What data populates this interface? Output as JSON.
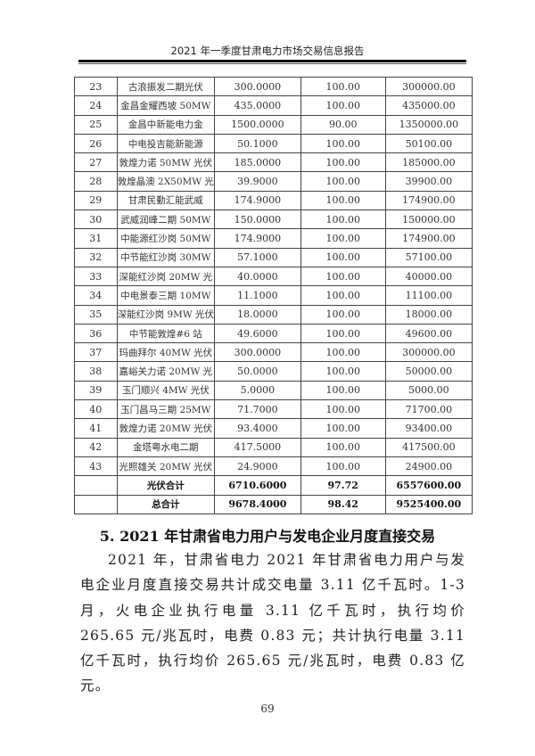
{
  "header": {
    "title": "2021 年一季度甘肃电力市场交易信息报告"
  },
  "table": {
    "rows": [
      [
        "23",
        "古浪振发二期光伏",
        "300.0000",
        "100.00",
        "300000.00"
      ],
      [
        "24",
        "金昌金耀西坡 50MW",
        "435.0000",
        "100.00",
        "435000.00"
      ],
      [
        "25",
        "金昌中新能电力金",
        "1500.0000",
        "90.00",
        "1350000.00"
      ],
      [
        "26",
        "中电投吉能新能源",
        "50.1000",
        "100.00",
        "50100.00"
      ],
      [
        "27",
        "敦煌力诺 50MW 光伏",
        "185.0000",
        "100.00",
        "185000.00"
      ],
      [
        "28",
        "敦煌晶澳 2X50MW 光",
        "39.9000",
        "100.00",
        "39900.00"
      ],
      [
        "29",
        "甘肃民勤汇能武威",
        "174.9000",
        "100.00",
        "174900.00"
      ],
      [
        "30",
        "武威润峰二期 50MW",
        "150.0000",
        "100.00",
        "150000.00"
      ],
      [
        "31",
        "中能源红沙岗 50MW",
        "174.9000",
        "100.00",
        "174900.00"
      ],
      [
        "32",
        "中节能红沙岗 30MW",
        "57.1000",
        "100.00",
        "57100.00"
      ],
      [
        "33",
        "深能红沙岗 20MW 光",
        "40.0000",
        "100.00",
        "40000.00"
      ],
      [
        "34",
        "中电景泰三期 10MW",
        "11.1000",
        "100.00",
        "11100.00"
      ],
      [
        "35",
        "深能红沙岗 9MW 光伏",
        "18.0000",
        "100.00",
        "18000.00"
      ],
      [
        "36",
        "中节能敦煌#6 站",
        "49.6000",
        "100.00",
        "49600.00"
      ],
      [
        "37",
        "玛曲拜尔 40MW 光伏",
        "300.0000",
        "100.00",
        "300000.00"
      ],
      [
        "38",
        "嘉峪关力诺 20MW 光",
        "50.0000",
        "100.00",
        "50000.00"
      ],
      [
        "39",
        "玉门顺兴 4MW 光伏",
        "5.0000",
        "100.00",
        "5000.00"
      ],
      [
        "40",
        "玉门昌马三期 25MW",
        "71.7000",
        "100.00",
        "71700.00"
      ],
      [
        "41",
        "敦煌力诺 20MW 光伏",
        "93.4000",
        "100.00",
        "93400.00"
      ],
      [
        "42",
        "金塔粤水电二期",
        "417.5000",
        "100.00",
        "417500.00"
      ],
      [
        "43",
        "光照雄关 20MW 光伏",
        "24.9000",
        "100.00",
        "24900.00"
      ]
    ],
    "totals": [
      [
        "",
        "光伏合计",
        "6710.6000",
        "97.72",
        "6557600.00"
      ],
      [
        "",
        "总合计",
        "9678.4000",
        "98.42",
        "9525400.00"
      ]
    ]
  },
  "section": {
    "heading": "5. 2021 年甘肃省电力用户与发电企业月度直接交易",
    "paragraph": "2021 年，甘肃省电力 2021 年甘肃省电力用户与发电企业月度直接交易共计成交电量 3.11 亿千瓦时。1-3 月，火电企业执行电量 3.11 亿千瓦时，执行均价 265.65 元/兆瓦时，电费 0.83 元；共计执行电量 3.11 亿千瓦时，执行均价 265.65 元/兆瓦时，电费 0.83 亿元。"
  },
  "footer": {
    "page_number": "69"
  }
}
